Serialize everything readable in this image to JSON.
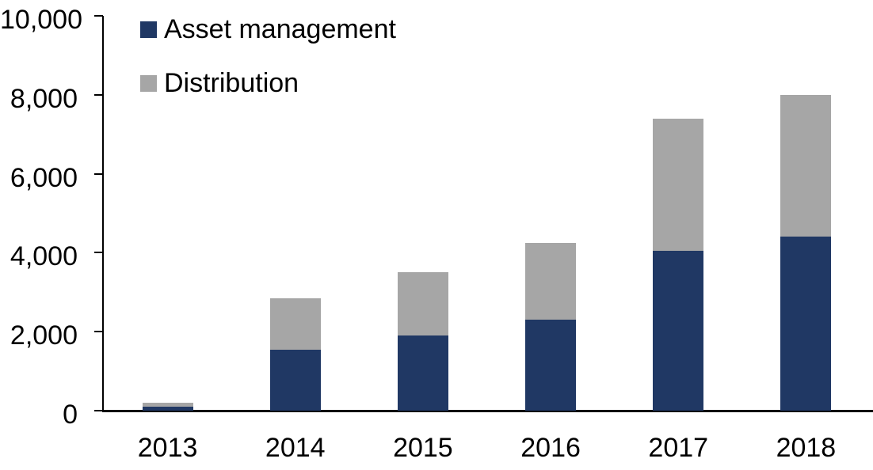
{
  "chart_data": {
    "type": "bar",
    "stacked": true,
    "title": "",
    "xlabel": "",
    "ylabel": "",
    "categories": [
      "2013",
      "2014",
      "2015",
      "2016",
      "2017",
      "2018"
    ],
    "series": [
      {
        "name": "Asset management",
        "color": "#203864",
        "values": [
          100,
          1550,
          1900,
          2300,
          4050,
          4400
        ]
      },
      {
        "name": "Distribution",
        "color": "#A6A6A6",
        "values": [
          100,
          1300,
          1600,
          1950,
          3350,
          3600
        ]
      }
    ],
    "totals": [
      200,
      2850,
      3500,
      4250,
      7400,
      8000
    ],
    "ylim": [
      0,
      10000
    ],
    "ytick_interval": 2000,
    "yticks": [
      0,
      2000,
      4000,
      6000,
      8000,
      10000
    ],
    "ytick_labels": [
      "0",
      "2,000",
      "4,000",
      "6,000",
      "8,000",
      "10,000"
    ],
    "grid": false,
    "legend_position": "top-left",
    "axis_color": "#000000",
    "background_color": "#ffffff"
  }
}
